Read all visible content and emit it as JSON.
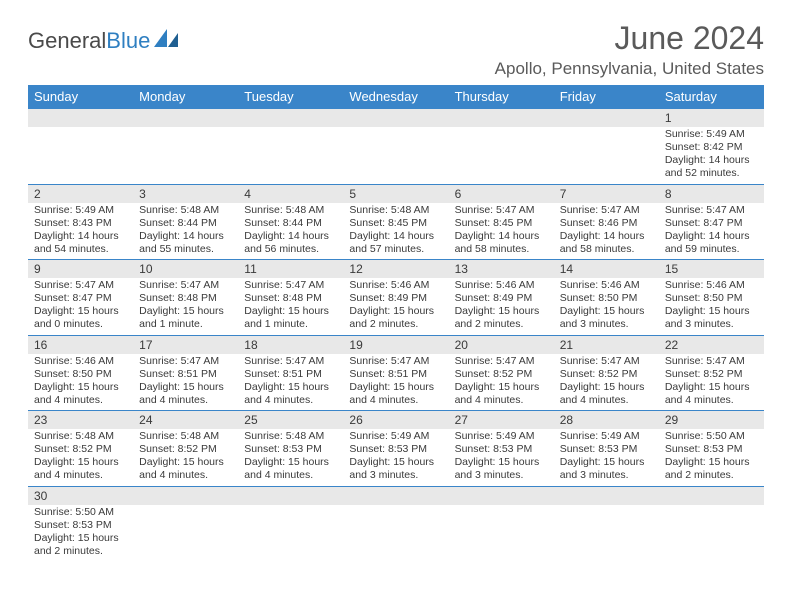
{
  "logo": {
    "text1": "General",
    "text2": "Blue"
  },
  "title": "June 2024",
  "location": "Apollo, Pennsylvania, United States",
  "colors": {
    "header_bg": "#3a85c9",
    "header_text": "#ffffff",
    "daynum_bg": "#e8e8e8",
    "text": "#3a3a3a",
    "rule": "#3a85c9"
  },
  "weekdays": [
    "Sunday",
    "Monday",
    "Tuesday",
    "Wednesday",
    "Thursday",
    "Friday",
    "Saturday"
  ],
  "weeks": [
    [
      null,
      null,
      null,
      null,
      null,
      null,
      {
        "n": "1",
        "sr": "Sunrise: 5:49 AM",
        "ss": "Sunset: 8:42 PM",
        "d1": "Daylight: 14 hours",
        "d2": "and 52 minutes."
      }
    ],
    [
      {
        "n": "2",
        "sr": "Sunrise: 5:49 AM",
        "ss": "Sunset: 8:43 PM",
        "d1": "Daylight: 14 hours",
        "d2": "and 54 minutes."
      },
      {
        "n": "3",
        "sr": "Sunrise: 5:48 AM",
        "ss": "Sunset: 8:44 PM",
        "d1": "Daylight: 14 hours",
        "d2": "and 55 minutes."
      },
      {
        "n": "4",
        "sr": "Sunrise: 5:48 AM",
        "ss": "Sunset: 8:44 PM",
        "d1": "Daylight: 14 hours",
        "d2": "and 56 minutes."
      },
      {
        "n": "5",
        "sr": "Sunrise: 5:48 AM",
        "ss": "Sunset: 8:45 PM",
        "d1": "Daylight: 14 hours",
        "d2": "and 57 minutes."
      },
      {
        "n": "6",
        "sr": "Sunrise: 5:47 AM",
        "ss": "Sunset: 8:45 PM",
        "d1": "Daylight: 14 hours",
        "d2": "and 58 minutes."
      },
      {
        "n": "7",
        "sr": "Sunrise: 5:47 AM",
        "ss": "Sunset: 8:46 PM",
        "d1": "Daylight: 14 hours",
        "d2": "and 58 minutes."
      },
      {
        "n": "8",
        "sr": "Sunrise: 5:47 AM",
        "ss": "Sunset: 8:47 PM",
        "d1": "Daylight: 14 hours",
        "d2": "and 59 minutes."
      }
    ],
    [
      {
        "n": "9",
        "sr": "Sunrise: 5:47 AM",
        "ss": "Sunset: 8:47 PM",
        "d1": "Daylight: 15 hours",
        "d2": "and 0 minutes."
      },
      {
        "n": "10",
        "sr": "Sunrise: 5:47 AM",
        "ss": "Sunset: 8:48 PM",
        "d1": "Daylight: 15 hours",
        "d2": "and 1 minute."
      },
      {
        "n": "11",
        "sr": "Sunrise: 5:47 AM",
        "ss": "Sunset: 8:48 PM",
        "d1": "Daylight: 15 hours",
        "d2": "and 1 minute."
      },
      {
        "n": "12",
        "sr": "Sunrise: 5:46 AM",
        "ss": "Sunset: 8:49 PM",
        "d1": "Daylight: 15 hours",
        "d2": "and 2 minutes."
      },
      {
        "n": "13",
        "sr": "Sunrise: 5:46 AM",
        "ss": "Sunset: 8:49 PM",
        "d1": "Daylight: 15 hours",
        "d2": "and 2 minutes."
      },
      {
        "n": "14",
        "sr": "Sunrise: 5:46 AM",
        "ss": "Sunset: 8:50 PM",
        "d1": "Daylight: 15 hours",
        "d2": "and 3 minutes."
      },
      {
        "n": "15",
        "sr": "Sunrise: 5:46 AM",
        "ss": "Sunset: 8:50 PM",
        "d1": "Daylight: 15 hours",
        "d2": "and 3 minutes."
      }
    ],
    [
      {
        "n": "16",
        "sr": "Sunrise: 5:46 AM",
        "ss": "Sunset: 8:50 PM",
        "d1": "Daylight: 15 hours",
        "d2": "and 4 minutes."
      },
      {
        "n": "17",
        "sr": "Sunrise: 5:47 AM",
        "ss": "Sunset: 8:51 PM",
        "d1": "Daylight: 15 hours",
        "d2": "and 4 minutes."
      },
      {
        "n": "18",
        "sr": "Sunrise: 5:47 AM",
        "ss": "Sunset: 8:51 PM",
        "d1": "Daylight: 15 hours",
        "d2": "and 4 minutes."
      },
      {
        "n": "19",
        "sr": "Sunrise: 5:47 AM",
        "ss": "Sunset: 8:51 PM",
        "d1": "Daylight: 15 hours",
        "d2": "and 4 minutes."
      },
      {
        "n": "20",
        "sr": "Sunrise: 5:47 AM",
        "ss": "Sunset: 8:52 PM",
        "d1": "Daylight: 15 hours",
        "d2": "and 4 minutes."
      },
      {
        "n": "21",
        "sr": "Sunrise: 5:47 AM",
        "ss": "Sunset: 8:52 PM",
        "d1": "Daylight: 15 hours",
        "d2": "and 4 minutes."
      },
      {
        "n": "22",
        "sr": "Sunrise: 5:47 AM",
        "ss": "Sunset: 8:52 PM",
        "d1": "Daylight: 15 hours",
        "d2": "and 4 minutes."
      }
    ],
    [
      {
        "n": "23",
        "sr": "Sunrise: 5:48 AM",
        "ss": "Sunset: 8:52 PM",
        "d1": "Daylight: 15 hours",
        "d2": "and 4 minutes."
      },
      {
        "n": "24",
        "sr": "Sunrise: 5:48 AM",
        "ss": "Sunset: 8:52 PM",
        "d1": "Daylight: 15 hours",
        "d2": "and 4 minutes."
      },
      {
        "n": "25",
        "sr": "Sunrise: 5:48 AM",
        "ss": "Sunset: 8:53 PM",
        "d1": "Daylight: 15 hours",
        "d2": "and 4 minutes."
      },
      {
        "n": "26",
        "sr": "Sunrise: 5:49 AM",
        "ss": "Sunset: 8:53 PM",
        "d1": "Daylight: 15 hours",
        "d2": "and 3 minutes."
      },
      {
        "n": "27",
        "sr": "Sunrise: 5:49 AM",
        "ss": "Sunset: 8:53 PM",
        "d1": "Daylight: 15 hours",
        "d2": "and 3 minutes."
      },
      {
        "n": "28",
        "sr": "Sunrise: 5:49 AM",
        "ss": "Sunset: 8:53 PM",
        "d1": "Daylight: 15 hours",
        "d2": "and 3 minutes."
      },
      {
        "n": "29",
        "sr": "Sunrise: 5:50 AM",
        "ss": "Sunset: 8:53 PM",
        "d1": "Daylight: 15 hours",
        "d2": "and 2 minutes."
      }
    ],
    [
      {
        "n": "30",
        "sr": "Sunrise: 5:50 AM",
        "ss": "Sunset: 8:53 PM",
        "d1": "Daylight: 15 hours",
        "d2": "and 2 minutes."
      },
      null,
      null,
      null,
      null,
      null,
      null
    ]
  ]
}
